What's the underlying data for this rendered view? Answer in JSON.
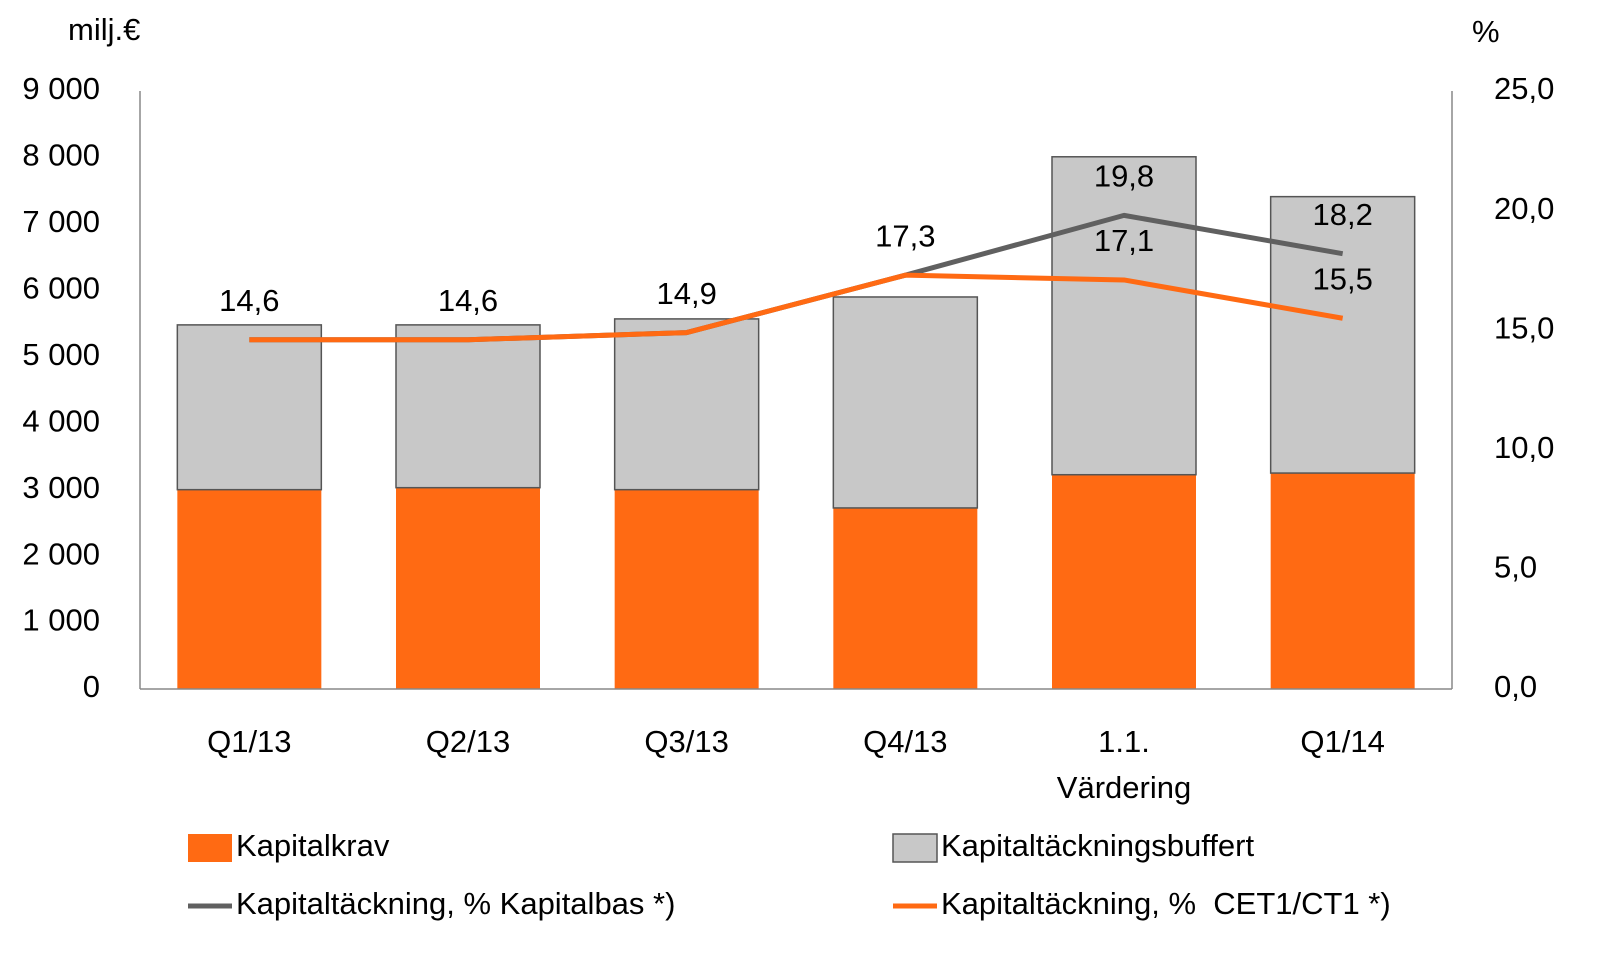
{
  "chart_data": {
    "type": "bar",
    "stacked": true,
    "y_unit": "milj.€",
    "y2_unit": "%",
    "categories": [
      "Q1/13",
      "Q2/13",
      "Q3/13",
      "Q4/13",
      "1.1. Värdering",
      "Q1/14"
    ],
    "series": [
      {
        "name": "Kapitalkrav",
        "color": "#ff6a13",
        "values": [
          3000,
          3030,
          3000,
          2725,
          3225,
          3250
        ]
      },
      {
        "name": "Kapitaltäckningsbuffert",
        "color": "#c8c8c8",
        "values": [
          2480,
          2450,
          2570,
          3175,
          4785,
          4160
        ]
      },
      {
        "name": "Kapitaltäckning, % Kapitalbas *)",
        "type": "line",
        "axis": "y2",
        "color": "#606060",
        "values": [
          14.6,
          14.6,
          14.9,
          17.3,
          19.8,
          18.2
        ],
        "value_labels": [
          null,
          null,
          null,
          null,
          "19,8",
          "18,2"
        ]
      },
      {
        "name": "Kapitaltäckning, %  CET1/CT1 *)",
        "type": "line",
        "axis": "y2",
        "color": "#ff6a13",
        "values": [
          14.6,
          14.6,
          14.9,
          17.3,
          17.1,
          15.5
        ],
        "value_labels": [
          "14,6",
          "14,6",
          "14,9",
          "17,3",
          "17,1",
          "15,5"
        ]
      }
    ],
    "ylim": [
      0,
      9000
    ],
    "yticks": [
      0,
      {
        "value": 1000,
        "label": "1 000"
      },
      {
        "value": 2000,
        "label": "2 000"
      },
      {
        "value": 3000,
        "label": "3 000"
      },
      {
        "value": 4000,
        "label": "4 000"
      },
      {
        "value": 5000,
        "label": "5 000"
      },
      {
        "value": 6000,
        "label": "6 000"
      },
      {
        "value": 7000,
        "label": "7 000"
      },
      {
        "value": 8000,
        "label": "8 000"
      },
      {
        "value": 9000,
        "label": "9 000"
      }
    ],
    "y2lim": [
      0,
      25
    ],
    "y2ticks": [
      {
        "value": 0,
        "label": "0,0"
      },
      {
        "value": 5,
        "label": "5,0"
      },
      {
        "value": 10,
        "label": "10,0"
      },
      {
        "value": 15,
        "label": "15,0"
      },
      {
        "value": 20,
        "label": "20,0"
      },
      {
        "value": 25,
        "label": "25,0"
      }
    ],
    "grid": false,
    "legend": "bottom"
  }
}
